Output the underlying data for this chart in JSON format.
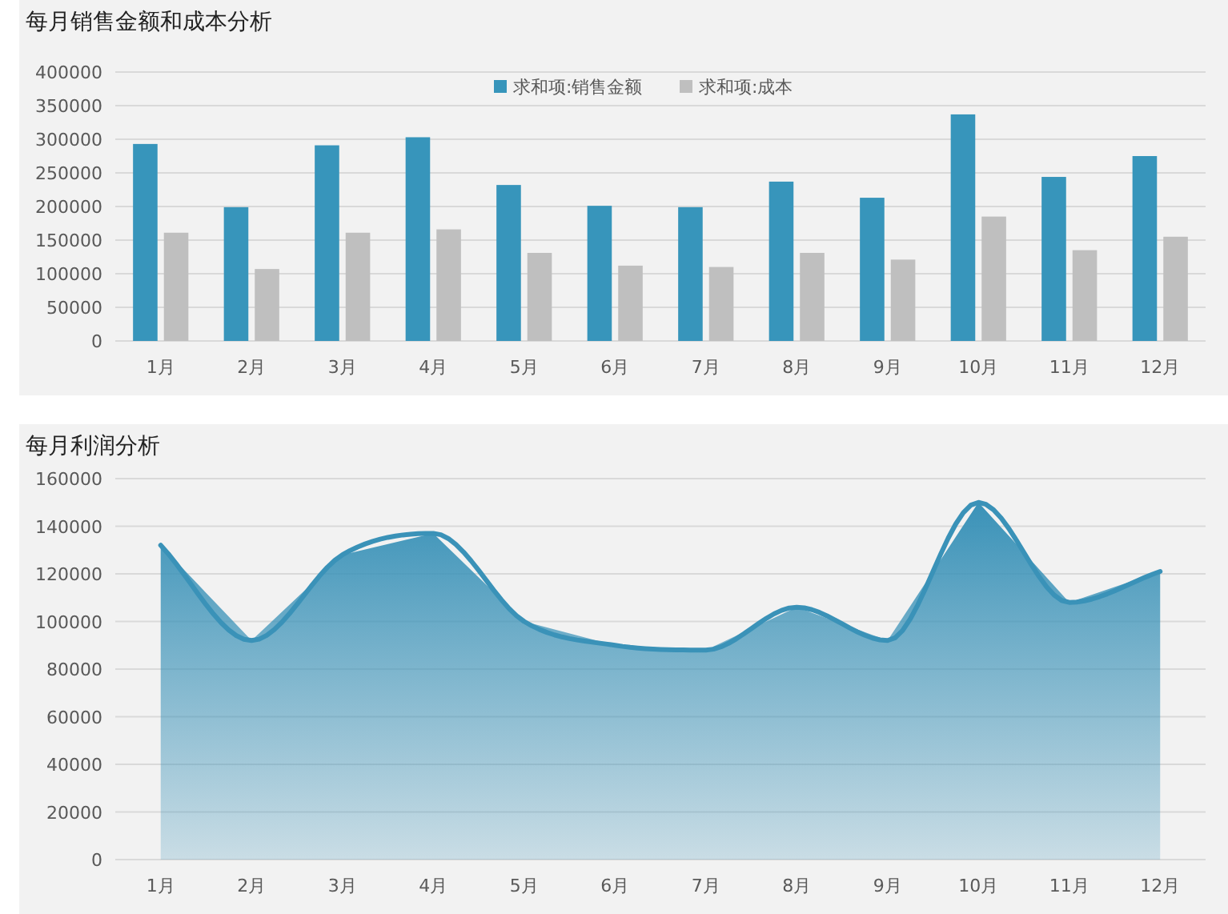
{
  "chart_data": [
    {
      "type": "bar",
      "title": "每月销售金额和成本分析",
      "categories": [
        "1月",
        "2月",
        "3月",
        "4月",
        "5月",
        "6月",
        "7月",
        "8月",
        "9月",
        "10月",
        "11月",
        "12月"
      ],
      "series": [
        {
          "name": "求和项:销售金额",
          "color": "#3795bb",
          "values": [
            293000,
            199000,
            291000,
            303000,
            232000,
            201000,
            199000,
            237000,
            213000,
            337000,
            244000,
            275000
          ]
        },
        {
          "name": "求和项:成本",
          "color": "#bfbfbf",
          "values": [
            161000,
            107000,
            161000,
            166000,
            131000,
            112000,
            110000,
            131000,
            121000,
            185000,
            135000,
            155000
          ]
        }
      ],
      "ylim": [
        0,
        400000
      ],
      "yticks": [
        0,
        50000,
        100000,
        150000,
        200000,
        250000,
        300000,
        350000,
        400000
      ],
      "grid": "y",
      "legend": "top"
    },
    {
      "type": "area",
      "title": "每月利润分析",
      "categories": [
        "1月",
        "2月",
        "3月",
        "4月",
        "5月",
        "6月",
        "7月",
        "8月",
        "9月",
        "10月",
        "11月",
        "12月"
      ],
      "series": [
        {
          "type": "area",
          "color": "#3a92b8",
          "values": [
            132000,
            92000,
            128000,
            137000,
            100000,
            90000,
            88000,
            106000,
            92000,
            150000,
            108000,
            121000
          ]
        }
      ],
      "ylim": [
        0,
        160000
      ],
      "yticks": [
        0,
        20000,
        40000,
        60000,
        80000,
        100000,
        120000,
        140000,
        160000
      ],
      "grid": "y"
    }
  ]
}
